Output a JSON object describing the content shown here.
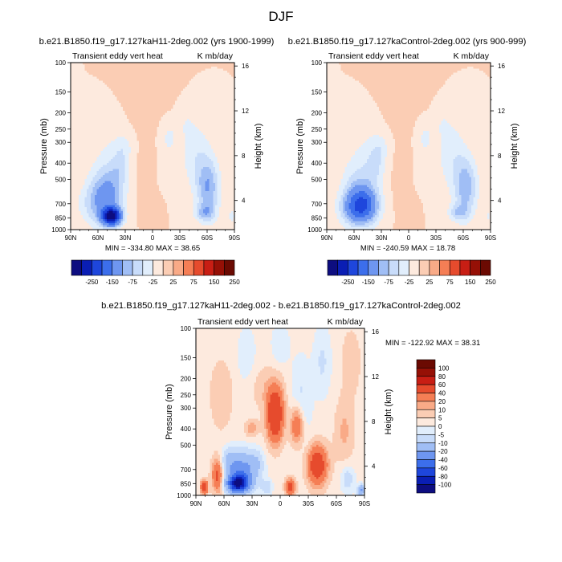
{
  "figure_title": "DJF",
  "contour_palette": [
    "#0d0d80",
    "#0a1eb4",
    "#1e46dc",
    "#3c6eeb",
    "#6e96f0",
    "#a0bef5",
    "#c8dcfa",
    "#e1eefc",
    "#fdeade",
    "#fbcdb4",
    "#f9aa87",
    "#f57e55",
    "#e64b2d",
    "#c81e14",
    "#961006",
    "#6b0a02"
  ],
  "chart_data": [
    {
      "type": "contour",
      "title": "b.e21.B1850.f19_g17.127kaH11-2deg.002 (yrs 1900-1999)",
      "left_label": "Transient eddy vert heat",
      "right_label": "K mb/day",
      "xlabel": "",
      "ylabel": "Pressure (mb)",
      "y2label": "Height (km)",
      "x_ticks": [
        "90N",
        "60N",
        "30N",
        "0",
        "30S",
        "60S",
        "90S"
      ],
      "y_ticks": [
        "100",
        "150",
        "200",
        "250",
        "300",
        "400",
        "500",
        "700",
        "850",
        "1000"
      ],
      "y2_ticks": [
        "16",
        "12",
        "8",
        "4"
      ],
      "stats": "MIN = -334.80   MAX =  38.65",
      "colorbar": {
        "orientation": "horizontal",
        "labels": [
          "-250",
          "-150",
          "-75",
          "-25",
          "25",
          "75",
          "150",
          "250"
        ]
      }
    },
    {
      "type": "contour",
      "title": "b.e21.B1850.f19_g17.127kaControl-2deg.002 (yrs 900-999)",
      "left_label": "Transient eddy vert heat",
      "right_label": "K mb/day",
      "xlabel": "",
      "ylabel": "Pressure (mb)",
      "y2label": "Height (km)",
      "x_ticks": [
        "90N",
        "60N",
        "30N",
        "0",
        "30S",
        "60S",
        "90S"
      ],
      "y_ticks": [
        "100",
        "150",
        "200",
        "250",
        "300",
        "400",
        "500",
        "700",
        "850",
        "1000"
      ],
      "y2_ticks": [
        "16",
        "12",
        "8",
        "4"
      ],
      "stats": "MIN = -240.59   MAX =  18.78",
      "colorbar": {
        "orientation": "horizontal",
        "labels": [
          "-250",
          "-150",
          "-75",
          "-25",
          "25",
          "75",
          "150",
          "250"
        ]
      }
    },
    {
      "type": "contour",
      "title": "b.e21.B1850.f19_g17.127kaH11-2deg.002 - b.e21.B1850.f19_g17.127kaControl-2deg.002",
      "left_label": "Transient eddy vert heat",
      "right_label": "K mb/day",
      "xlabel": "",
      "ylabel": "Pressure (mb)",
      "y2label": "Height (km)",
      "x_ticks": [
        "90N",
        "60N",
        "30N",
        "0",
        "30S",
        "60S",
        "90S"
      ],
      "y_ticks": [
        "100",
        "150",
        "200",
        "250",
        "300",
        "400",
        "500",
        "700",
        "850",
        "1000"
      ],
      "y2_ticks": [
        "16",
        "12",
        "8",
        "4"
      ],
      "stats": "MIN = -122.92   MAX =  38.31",
      "colorbar": {
        "orientation": "vertical",
        "labels": [
          "100",
          "80",
          "60",
          "40",
          "20",
          "10",
          "5",
          "0",
          "-5",
          "-10",
          "-20",
          "-40",
          "-60",
          "-80",
          "-100"
        ]
      }
    }
  ]
}
